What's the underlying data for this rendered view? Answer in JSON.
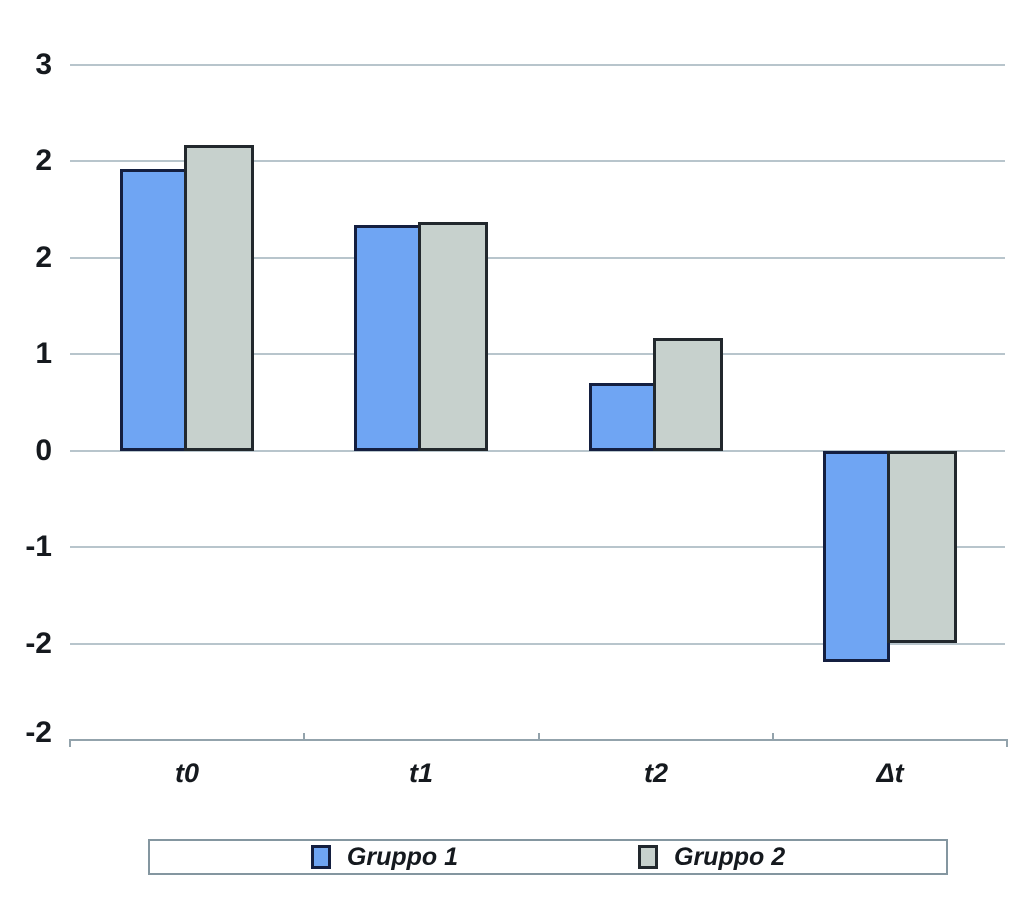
{
  "chart_data": {
    "type": "bar",
    "categories": [
      "t0",
      "t1",
      "t2",
      "Δt"
    ],
    "series": [
      {
        "name": "Gruppo 1",
        "fill": "#6FA5F3",
        "border": "#141F40",
        "values": [
          2.19,
          1.76,
          0.53,
          -1.64
        ]
      },
      {
        "name": "Gruppo 2",
        "fill": "#C7D1CD",
        "border": "#22282D",
        "values": [
          2.38,
          1.78,
          0.88,
          -1.49
        ]
      }
    ],
    "y_axis": {
      "tick_labels": [
        "3",
        "2",
        "2",
        "1",
        "0",
        "-1",
        "-2",
        "-2"
      ],
      "zero_tick_index": 4,
      "units_per_gridline": 0.75,
      "ylim": [
        -2.25,
        3
      ],
      "gridlines": true
    },
    "x_axis": {
      "labels": [
        "t0",
        "t1",
        "t2",
        "Δt"
      ]
    },
    "legend": {
      "position": "bottom",
      "entries": [
        "Gruppo 1",
        "Gruppo 2"
      ]
    },
    "colors": {
      "background": "#FFFFFF",
      "gridline": "#B8C5CC",
      "axis_line": "#93A3AC",
      "text": "#15191E",
      "legend_border": "#8496A0",
      "series_1_fill": "#6FA5F3",
      "series_1_border": "#141F40",
      "series_2_fill": "#C7D1CD",
      "series_2_border": "#22282D"
    }
  }
}
